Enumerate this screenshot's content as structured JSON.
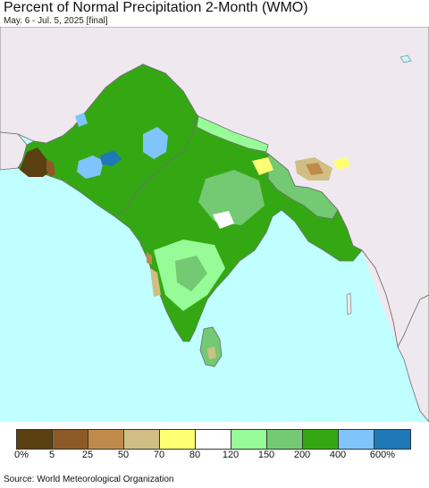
{
  "header": {
    "title": "Percent of Normal Precipitation 2-Month (WMO)",
    "subtitle": "May. 6 - Jul. 5, 2025 [final]"
  },
  "map": {
    "region": "South Asia",
    "colors": {
      "ocean": "#bfffff",
      "land_outside": "#efe9ef",
      "border": "#6e6e6e"
    }
  },
  "legend": {
    "swatches": [
      {
        "color": "#5a3f11"
      },
      {
        "color": "#8d5a26"
      },
      {
        "color": "#c08b4a"
      },
      {
        "color": "#cfbf84"
      },
      {
        "color": "#ffff73"
      },
      {
        "color": "#ffffff"
      },
      {
        "color": "#97fb97"
      },
      {
        "color": "#74c973"
      },
      {
        "color": "#34a813"
      },
      {
        "color": "#7fc4fb"
      },
      {
        "color": "#1f79b8"
      }
    ],
    "labels": [
      "0%",
      "5",
      "25",
      "50",
      "70",
      "80",
      "120",
      "150",
      "200",
      "400",
      "600%"
    ]
  },
  "footer": {
    "source": "Source: World Meteorological Organization"
  }
}
